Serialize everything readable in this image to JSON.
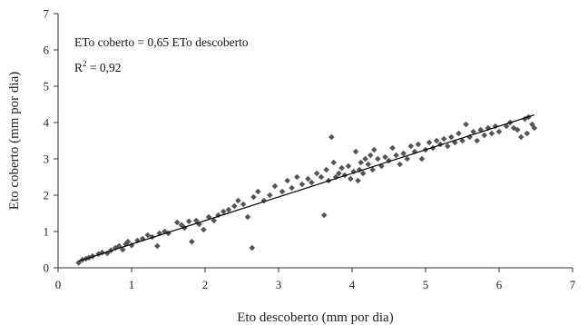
{
  "chart_data": {
    "type": "scatter",
    "title": "",
    "xlabel": "Eto descoberto (mm por dia)",
    "ylabel": "Eto coberto (mm por dia)",
    "xlim": [
      0,
      7
    ],
    "ylim": [
      0,
      7
    ],
    "xticks": [
      "0",
      "1",
      "2",
      "3",
      "4",
      "5",
      "6",
      "7"
    ],
    "yticks": [
      "0",
      "1",
      "2",
      "3",
      "4",
      "5",
      "6",
      "7"
    ],
    "grid": false,
    "legend": "none",
    "annotations": {
      "equation": "ETo coberto = 0,65 ETo descoberto",
      "r2_prefix": "R",
      "r2_sup": "2",
      "r2_value": " = 0,92"
    },
    "marker_color": "#555555",
    "trendline": {
      "slope": 0.65,
      "x": [
        0.28,
        6.48
      ]
    },
    "series": [
      {
        "x": [
          0.28,
          0.33,
          0.38,
          0.42,
          0.47,
          0.55,
          0.6,
          0.67,
          0.72,
          0.78,
          0.83,
          0.88,
          0.92,
          0.95,
          1.0,
          1.08,
          1.15,
          1.22,
          1.28,
          1.35,
          1.38,
          1.45,
          1.5,
          1.62,
          1.68,
          1.72,
          1.78,
          1.82,
          1.88,
          1.92,
          1.98,
          2.05,
          2.12,
          2.18,
          2.25,
          2.32,
          2.4,
          2.45,
          2.52,
          2.58,
          2.64,
          2.66,
          2.72,
          2.8,
          2.88,
          2.95,
          3.05,
          3.12,
          3.18,
          3.25,
          3.32,
          3.4,
          3.45,
          3.52,
          3.58,
          3.62,
          3.65,
          3.68,
          3.72,
          3.75,
          3.78,
          3.82,
          3.86,
          3.9,
          3.95,
          3.98,
          4.02,
          4.05,
          4.08,
          4.1,
          4.12,
          4.15,
          4.18,
          4.22,
          4.25,
          4.28,
          4.3,
          4.35,
          4.4,
          4.45,
          4.5,
          4.55,
          4.6,
          4.65,
          4.7,
          4.75,
          4.8,
          4.85,
          4.9,
          4.95,
          5.0,
          5.05,
          5.1,
          5.15,
          5.2,
          5.25,
          5.3,
          5.35,
          5.4,
          5.45,
          5.5,
          5.55,
          5.6,
          5.65,
          5.7,
          5.75,
          5.8,
          5.85,
          5.9,
          5.95,
          6.0,
          6.1,
          6.15,
          6.2,
          6.25,
          6.3,
          6.35,
          6.38,
          6.4,
          6.45,
          6.48
        ],
        "y": [
          0.14,
          0.22,
          0.25,
          0.28,
          0.32,
          0.38,
          0.42,
          0.4,
          0.48,
          0.55,
          0.6,
          0.5,
          0.65,
          0.72,
          0.62,
          0.75,
          0.8,
          0.9,
          0.85,
          0.6,
          0.95,
          1.0,
          0.95,
          1.25,
          1.18,
          1.1,
          1.28,
          0.72,
          1.3,
          1.2,
          1.05,
          1.4,
          1.3,
          1.45,
          1.55,
          1.6,
          1.7,
          1.85,
          1.75,
          1.4,
          0.55,
          1.95,
          2.1,
          1.85,
          2.0,
          2.25,
          2.1,
          2.4,
          2.2,
          2.5,
          2.3,
          2.45,
          2.35,
          2.6,
          2.5,
          1.45,
          2.7,
          2.4,
          3.6,
          2.9,
          2.5,
          2.6,
          2.75,
          2.55,
          2.8,
          2.45,
          2.65,
          3.2,
          2.4,
          2.7,
          2.9,
          2.6,
          3.0,
          2.85,
          3.1,
          2.7,
          3.25,
          3.0,
          2.8,
          3.05,
          2.95,
          3.3,
          3.1,
          2.85,
          3.15,
          3.0,
          3.35,
          3.2,
          3.4,
          3.0,
          3.25,
          3.45,
          3.3,
          3.5,
          3.4,
          3.55,
          3.35,
          3.6,
          3.45,
          3.7,
          3.5,
          3.95,
          3.6,
          3.75,
          3.5,
          3.8,
          3.65,
          3.85,
          3.7,
          3.9,
          3.75,
          3.9,
          4.0,
          3.85,
          3.8,
          3.6,
          4.1,
          3.7,
          4.15,
          3.95,
          3.85
        ]
      }
    ]
  }
}
